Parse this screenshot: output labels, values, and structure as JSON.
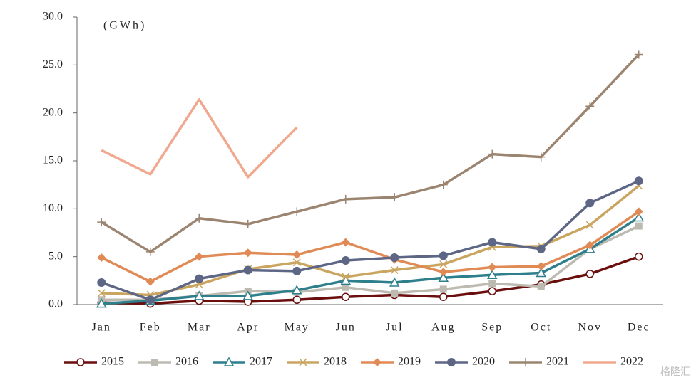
{
  "chart_data": {
    "type": "line",
    "annotation": "(GWh)",
    "watermark": "格隆汇",
    "categories": [
      "Jan",
      "Feb",
      "Mar",
      "Apr",
      "May",
      "Jun",
      "Jul",
      "Aug",
      "Sep",
      "Oct",
      "Nov",
      "Dec"
    ],
    "ylim": [
      0,
      30
    ],
    "yticks": [
      {
        "value": 0,
        "label": "0.0"
      },
      {
        "value": 5,
        "label": "5.0"
      },
      {
        "value": 10,
        "label": "10.0"
      },
      {
        "value": 15,
        "label": "15.0"
      },
      {
        "value": 20,
        "label": "20.0"
      },
      {
        "value": 25,
        "label": "25.0"
      },
      {
        "value": 30,
        "label": "30.0"
      }
    ],
    "grid": false,
    "legend": "bottom",
    "series": [
      {
        "name": "2015",
        "color": "#6b0e0e",
        "marker": "circle-open",
        "values": [
          0.2,
          0.1,
          0.4,
          0.3,
          0.5,
          0.8,
          1.0,
          0.8,
          1.4,
          2.1,
          3.2,
          5.0
        ]
      },
      {
        "name": "2016",
        "color": "#bdbab1",
        "marker": "square",
        "values": [
          0.5,
          0.5,
          0.9,
          1.4,
          1.3,
          1.8,
          1.2,
          1.6,
          2.2,
          1.9,
          5.8,
          8.2
        ]
      },
      {
        "name": "2017",
        "color": "#2e7f8c",
        "marker": "triangle-open",
        "values": [
          0.1,
          0.4,
          0.9,
          0.9,
          1.5,
          2.5,
          2.3,
          2.8,
          3.1,
          3.3,
          5.8,
          9.1
        ]
      },
      {
        "name": "2018",
        "color": "#c9a560",
        "marker": "x",
        "values": [
          1.2,
          1.0,
          2.1,
          3.7,
          4.4,
          2.9,
          3.6,
          4.2,
          6.0,
          6.1,
          8.3,
          12.4
        ]
      },
      {
        "name": "2019",
        "color": "#e08a55",
        "marker": "diamond",
        "values": [
          4.9,
          2.4,
          5.0,
          5.4,
          5.2,
          6.5,
          4.7,
          3.4,
          3.9,
          4.0,
          6.2,
          9.7
        ]
      },
      {
        "name": "2020",
        "color": "#5d6685",
        "marker": "circle",
        "values": [
          2.3,
          0.5,
          2.7,
          3.6,
          3.5,
          4.6,
          4.9,
          5.1,
          6.5,
          5.8,
          10.6,
          12.9
        ]
      },
      {
        "name": "2021",
        "color": "#9c8570",
        "marker": "plus",
        "values": [
          8.6,
          5.5,
          9.0,
          8.4,
          9.7,
          11.0,
          11.2,
          12.5,
          15.7,
          15.4,
          20.7,
          26.1
        ]
      },
      {
        "name": "2022",
        "color": "#f0a88e",
        "marker": "none",
        "values": [
          16.1,
          13.6,
          21.4,
          13.3,
          18.5,
          null,
          null,
          null,
          null,
          null,
          null,
          null
        ]
      }
    ]
  }
}
